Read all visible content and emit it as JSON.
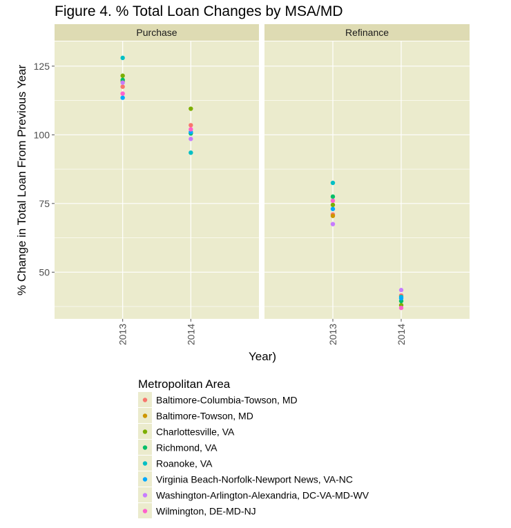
{
  "chart_data": {
    "type": "scatter",
    "title": "Figure 4. % Total Loan Changes by MSA/MD",
    "xlabel": "Year)",
    "ylabel": "% Change in Total Loan From Previous Year",
    "ylim": [
      33,
      134
    ],
    "yticks": [
      50,
      75,
      100,
      125
    ],
    "categories": [
      "2013",
      "2014"
    ],
    "facets": [
      "Purchase",
      "Refinance"
    ],
    "legend_title": "Metropolitan Area",
    "legend_position": "bottom",
    "grid": true,
    "series": [
      {
        "name": "Baltimore-Columbia-Towson, MD",
        "color": "#F8766D",
        "values": {
          "Purchase": [
            117.5,
            103.5
          ],
          "Refinance": [
            71.0,
            41.5
          ]
        }
      },
      {
        "name": "Baltimore-Towson, MD",
        "color": "#CD9600",
        "values": {
          "Purchase": [
            119.5,
            null
          ],
          "Refinance": [
            70.5,
            null
          ]
        }
      },
      {
        "name": "Charlottesville, VA",
        "color": "#7CAE00",
        "values": {
          "Purchase": [
            121.5,
            109.5
          ],
          "Refinance": [
            74.5,
            38.0
          ]
        }
      },
      {
        "name": "Richmond, VA",
        "color": "#00BE67",
        "values": {
          "Purchase": [
            120.0,
            100.5
          ],
          "Refinance": [
            77.5,
            39.5
          ]
        }
      },
      {
        "name": "Roanoke, VA",
        "color": "#00BFC4",
        "values": {
          "Purchase": [
            128.0,
            93.5
          ],
          "Refinance": [
            82.5,
            41.0
          ]
        }
      },
      {
        "name": "Virginia Beach-Norfolk-Newport News, VA-NC",
        "color": "#00A9FF",
        "values": {
          "Purchase": [
            113.5,
            101.0
          ],
          "Refinance": [
            73.0,
            40.5
          ]
        }
      },
      {
        "name": "Washington-Arlington-Alexandria, DC-VA-MD-WV",
        "color": "#C77CFF",
        "values": {
          "Purchase": [
            119.0,
            98.5
          ],
          "Refinance": [
            67.5,
            43.5
          ]
        }
      },
      {
        "name": "Wilmington, DE-MD-NJ",
        "color": "#FF61CC",
        "values": {
          "Purchase": [
            115.0,
            102.0
          ],
          "Refinance": [
            76.0,
            37.0
          ]
        }
      }
    ]
  }
}
